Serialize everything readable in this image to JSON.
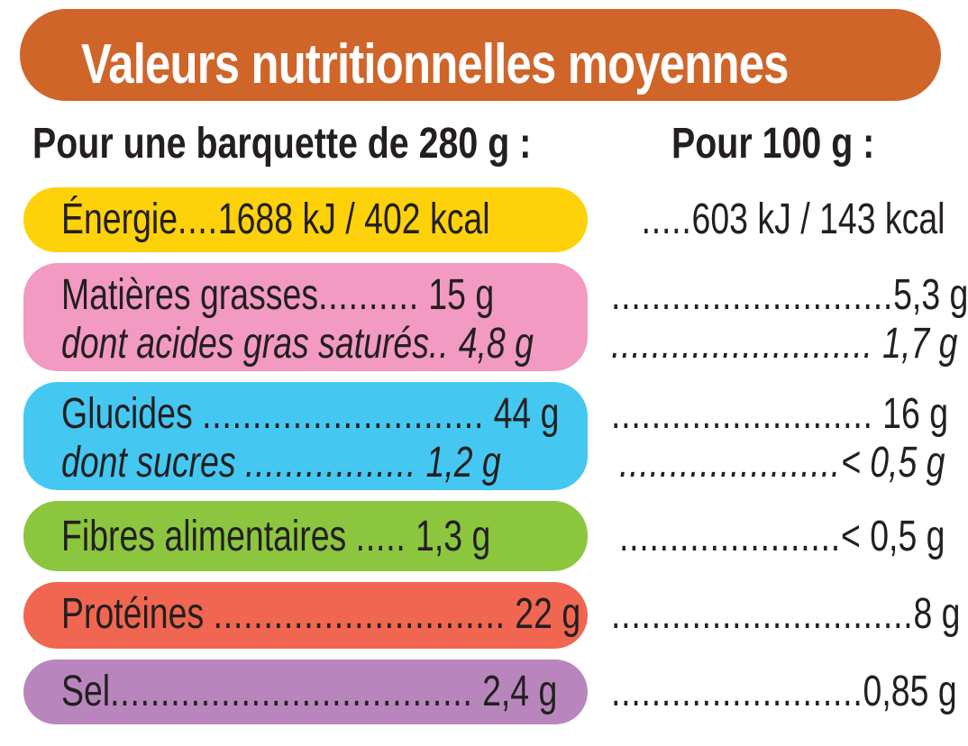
{
  "title": "Valeurs nutritionnelles moyennes",
  "header": {
    "per_portion": "Pour une barquette de 280 g :",
    "per_100g": "Pour 100 g :"
  },
  "colors": {
    "title": "#d0652a",
    "energy": "#fdd20a",
    "fat": "#f29ac2",
    "carbs": "#44c8f2",
    "fibre": "#8cc63e",
    "protein": "#f06650",
    "salt": "#b886bc"
  },
  "rows": [
    {
      "label": "Énergie",
      "dots": "....",
      "per_portion": "1688 kJ / 402 kcal",
      "right_dots": ".....",
      "per_100g": "603 kJ / 143 kcal"
    },
    {
      "label": "Matières grasses",
      "dots": "..........",
      "per_portion": "15 g",
      "right_dots": "............................",
      "per_100g": "5,3 g"
    },
    {
      "label": "dont acides gras saturés",
      "dots": "..",
      "per_portion": "4,8 g",
      "right_dots": "..........................",
      "per_100g": "1,7 g"
    },
    {
      "label": "Glucides",
      "dots": "............................",
      "per_portion": "44 g",
      "right_dots": "..........................",
      "per_100g": "16 g"
    },
    {
      "label": "dont sucres",
      "dots": ".................",
      "per_portion": "1,2 g",
      "right_dots": "......................",
      "per_100g": "< 0,5 g"
    },
    {
      "label": "Fibres alimentaires",
      "dots": ".....",
      "per_portion": "1,3 g",
      "right_dots": "......................",
      "per_100g": "< 0,5 g"
    },
    {
      "label": "Protéines",
      "dots": ".............................",
      "per_portion": "22 g",
      "right_dots": "..............................",
      "per_100g": "8 g"
    },
    {
      "label": "Sel",
      "dots": "....................................",
      "per_portion": "2,4 g",
      "right_dots": ".........................",
      "per_100g": "0,85 g"
    }
  ]
}
